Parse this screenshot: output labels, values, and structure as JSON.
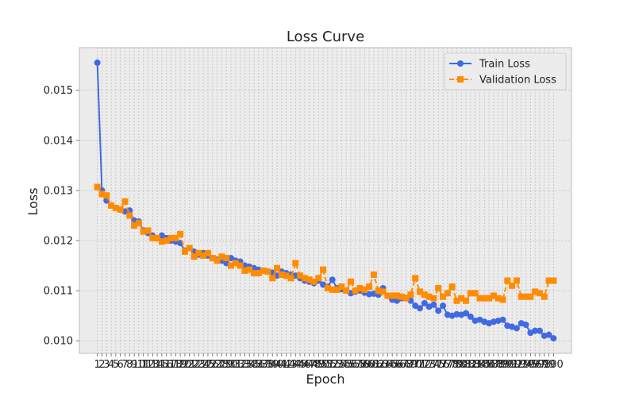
{
  "chart_data": {
    "type": "line",
    "title": "Loss Curve",
    "xlabel": "Epoch",
    "ylabel": "Loss",
    "xlim": [
      -2.9,
      103.9
    ],
    "ylim": [
      0.00975,
      0.01585
    ],
    "yticks": [
      0.01,
      0.011,
      0.012,
      0.013,
      0.014,
      0.015
    ],
    "ytick_labels": [
      "0.010",
      "0.011",
      "0.012",
      "0.013",
      "0.014",
      "0.015"
    ],
    "grid": true,
    "legend_position": "top-right",
    "x": [
      1,
      2,
      3,
      4,
      5,
      6,
      7,
      8,
      9,
      10,
      11,
      12,
      13,
      14,
      15,
      16,
      17,
      18,
      19,
      20,
      21,
      22,
      23,
      24,
      25,
      26,
      27,
      28,
      29,
      30,
      31,
      32,
      33,
      34,
      35,
      36,
      37,
      38,
      39,
      40,
      41,
      42,
      43,
      44,
      45,
      46,
      47,
      48,
      49,
      50,
      51,
      52,
      53,
      54,
      55,
      56,
      57,
      58,
      59,
      60,
      61,
      62,
      63,
      64,
      65,
      66,
      67,
      68,
      69,
      70,
      71,
      72,
      73,
      74,
      75,
      76,
      77,
      78,
      79,
      80,
      81,
      82,
      83,
      84,
      85,
      86,
      87,
      88,
      89,
      90,
      91,
      92,
      93,
      94,
      95,
      96,
      97,
      98,
      99,
      100
    ],
    "series": [
      {
        "name": "Train Loss",
        "color": "#4169e1",
        "marker": "circle",
        "linestyle": "solid",
        "values": [
          0.01555,
          0.013,
          0.0128,
          0.0127,
          0.01265,
          0.01262,
          0.01258,
          0.0126,
          0.0124,
          0.01238,
          0.0122,
          0.01215,
          0.0121,
          0.01205,
          0.0121,
          0.01205,
          0.012,
          0.01198,
          0.01195,
          0.0118,
          0.01185,
          0.01178,
          0.01172,
          0.01175,
          0.0117,
          0.01165,
          0.01162,
          0.0116,
          0.01155,
          0.01165,
          0.0116,
          0.01158,
          0.0115,
          0.01148,
          0.01145,
          0.01142,
          0.0114,
          0.01138,
          0.01136,
          0.0113,
          0.01138,
          0.01135,
          0.01132,
          0.0113,
          0.01125,
          0.0112,
          0.01118,
          0.01115,
          0.0112,
          0.01112,
          0.01108,
          0.01122,
          0.01105,
          0.01103,
          0.011,
          0.01095,
          0.01098,
          0.011,
          0.01096,
          0.01093,
          0.01094,
          0.01092,
          0.01105,
          0.0109,
          0.01082,
          0.0108,
          0.01085,
          0.01086,
          0.0108,
          0.0107,
          0.01065,
          0.01075,
          0.01068,
          0.01072,
          0.0106,
          0.0107,
          0.01052,
          0.0105,
          0.01053,
          0.01052,
          0.01055,
          0.01048,
          0.0104,
          0.01042,
          0.01038,
          0.01035,
          0.01038,
          0.0104,
          0.01042,
          0.0103,
          0.01028,
          0.01025,
          0.01035,
          0.01032,
          0.01016,
          0.0102,
          0.0102,
          0.0101,
          0.01012,
          0.01005
        ]
      },
      {
        "name": "Validation Loss",
        "color": "#ff8c00",
        "marker": "square",
        "linestyle": "dashed",
        "values": [
          0.01307,
          0.01293,
          0.0129,
          0.0127,
          0.01265,
          0.01262,
          0.01278,
          0.0125,
          0.0123,
          0.01235,
          0.01218,
          0.0122,
          0.01205,
          0.01205,
          0.01198,
          0.012,
          0.01205,
          0.01205,
          0.01213,
          0.01178,
          0.01185,
          0.01168,
          0.01175,
          0.0117,
          0.01175,
          0.01165,
          0.0116,
          0.01168,
          0.01165,
          0.0115,
          0.01155,
          0.0115,
          0.0114,
          0.01142,
          0.01135,
          0.01135,
          0.0114,
          0.01138,
          0.01125,
          0.01145,
          0.01132,
          0.0113,
          0.01125,
          0.01155,
          0.0113,
          0.01125,
          0.01122,
          0.01118,
          0.01125,
          0.01142,
          0.01105,
          0.01102,
          0.01102,
          0.01108,
          0.011,
          0.01118,
          0.011,
          0.01105,
          0.01102,
          0.01108,
          0.01132,
          0.011,
          0.01098,
          0.0109,
          0.0109,
          0.0109,
          0.01088,
          0.01085,
          0.01092,
          0.01125,
          0.01098,
          0.01092,
          0.01088,
          0.01085,
          0.01105,
          0.01088,
          0.01095,
          0.01108,
          0.0108,
          0.01085,
          0.0108,
          0.01095,
          0.01095,
          0.01085,
          0.01085,
          0.01085,
          0.0109,
          0.01085,
          0.01082,
          0.0112,
          0.0111,
          0.0112,
          0.01088,
          0.01088,
          0.01088,
          0.01098,
          0.01095,
          0.01088,
          0.0112,
          0.0112
        ]
      }
    ]
  }
}
